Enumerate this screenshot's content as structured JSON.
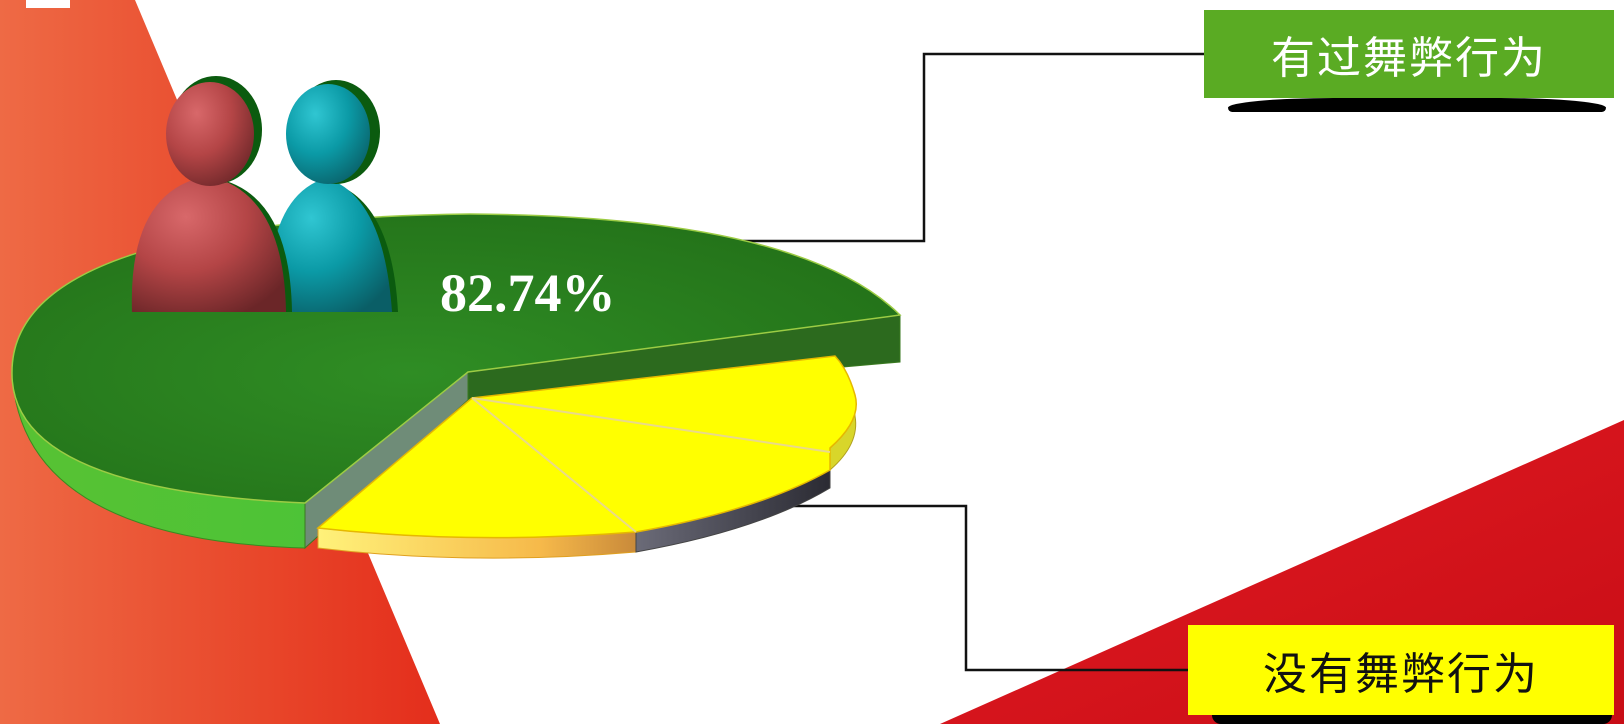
{
  "chart_data": {
    "type": "pie",
    "style": "3d-exploded",
    "slices": [
      {
        "label": "有过舞弊行为",
        "value": 82.74,
        "color": "#2e8b22"
      },
      {
        "label": "没有舞弊行为",
        "value": 17.26,
        "color": "#ffff00"
      }
    ],
    "data_labels": [
      "82.74%"
    ],
    "legend": "callout-boxes-right"
  },
  "labels": {
    "cheated": "有过舞弊行为",
    "not_cheated": "没有舞弊行为",
    "percent": "82.74%"
  },
  "colors": {
    "accent_left": "#e8502a",
    "accent_right": "#d90f1c",
    "green_box": "#5aab23",
    "yellow_box": "#ffff00"
  },
  "icons": {
    "people": "two-people-icon"
  }
}
